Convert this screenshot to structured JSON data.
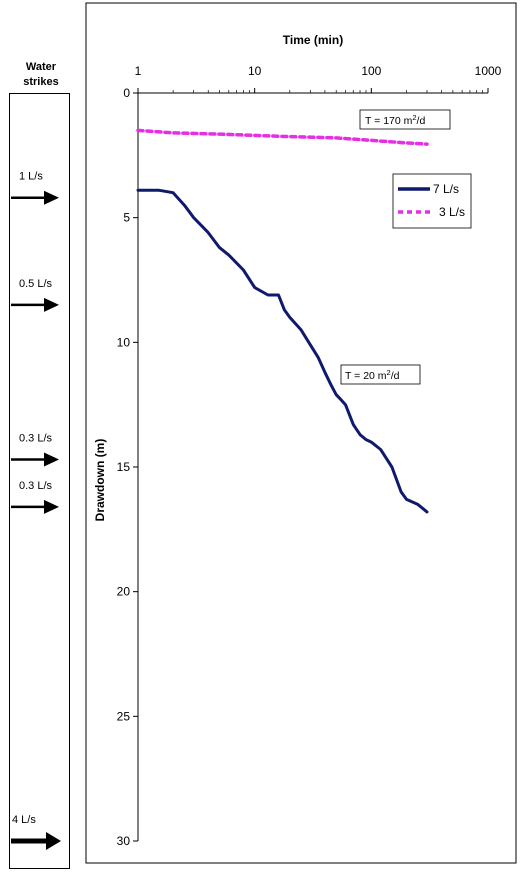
{
  "water_strikes": {
    "title_line1": "Water",
    "title_line2": "strikes",
    "strikes": [
      {
        "label": "1 L/s",
        "depth": 4.2,
        "heavy": false
      },
      {
        "label": "0.5 L/s",
        "depth": 8.5,
        "heavy": false
      },
      {
        "label": "0.3 L/s",
        "depth": 14.7,
        "heavy": false
      },
      {
        "label": "0.3 L/s",
        "depth": 16.6,
        "heavy": false
      },
      {
        "label": "4 L/s",
        "depth": 30.0,
        "heavy": true
      }
    ]
  },
  "chart_data": {
    "type": "line",
    "title": "",
    "xlabel": "Time (min)",
    "ylabel": "Drawdown (m)",
    "xscale": "log",
    "xlim": [
      1,
      1000
    ],
    "ylim": [
      0,
      30
    ],
    "y_inverted": true,
    "x_ticks": [
      "1",
      "10",
      "100",
      "1000"
    ],
    "y_ticks": [
      "0",
      "5",
      "10",
      "15",
      "20",
      "25",
      "30"
    ],
    "grid": false,
    "legend_position": "top-right",
    "colors": {
      "series_7": "#0f1a6e",
      "series_3": "#e62ee6"
    },
    "series": [
      {
        "name": "7 L/s",
        "x": [
          1,
          1.5,
          2,
          2.5,
          3,
          4,
          5,
          6,
          8,
          10,
          13,
          16,
          18,
          20,
          25,
          30,
          35,
          40,
          45,
          50,
          55,
          60,
          70,
          80,
          90,
          100,
          120,
          150,
          180,
          200,
          250,
          300
        ],
        "y": [
          3.9,
          3.9,
          4.0,
          4.5,
          5.0,
          5.6,
          6.2,
          6.5,
          7.1,
          7.8,
          8.1,
          8.1,
          8.7,
          9.0,
          9.5,
          10.1,
          10.6,
          11.2,
          11.7,
          12.1,
          12.3,
          12.5,
          13.3,
          13.7,
          13.9,
          14.0,
          14.3,
          15.0,
          16.0,
          16.3,
          16.5,
          16.8
        ]
      },
      {
        "name": "3 L/s",
        "x": [
          1,
          2,
          5,
          10,
          20,
          50,
          100,
          200,
          300
        ],
        "y": [
          1.5,
          1.6,
          1.65,
          1.7,
          1.75,
          1.8,
          1.9,
          2.0,
          2.05
        ]
      }
    ],
    "annotations": [
      {
        "id": "t170",
        "text_pre": "T = 170 m",
        "sup": "2",
        "text_post": "/d"
      },
      {
        "id": "t20",
        "text_pre": "T = 20 m",
        "sup": "2",
        "text_post": "/d"
      }
    ]
  }
}
